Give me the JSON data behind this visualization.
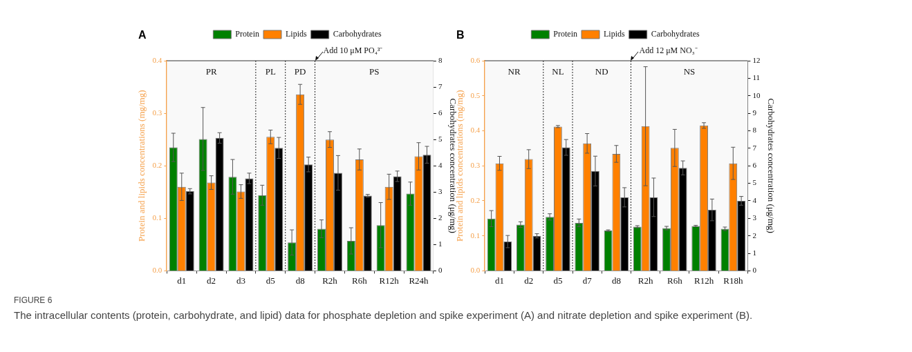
{
  "chart_data": [
    {
      "type": "bar",
      "title": "A",
      "categories": [
        "d1",
        "d2",
        "d3",
        "d5",
        "d8",
        "R2h",
        "R6h",
        "R12h",
        "R24h"
      ],
      "series": [
        {
          "name": "Protein",
          "color": "#008000",
          "values": [
            0.235,
            0.251,
            0.179,
            0.144,
            0.054,
            0.08,
            0.057,
            0.087,
            0.147
          ],
          "errors": [
            0.027,
            0.06,
            0.033,
            0.019,
            0.024,
            0.017,
            0.025,
            0.043,
            0.022
          ]
        },
        {
          "name": "Lipids",
          "color": "#ff8000",
          "values": [
            0.16,
            0.168,
            0.151,
            0.255,
            0.336,
            0.25,
            0.212,
            0.16,
            0.218
          ],
          "errors": [
            0.026,
            0.013,
            0.013,
            0.013,
            0.019,
            0.015,
            0.02,
            0.024,
            0.026
          ]
        },
        {
          "name": "Carbohydrates",
          "color": "#000000",
          "axis": "y2",
          "values": [
            3.03,
            5.06,
            3.52,
            4.68,
            4.05,
            3.73,
            2.86,
            3.6,
            4.42
          ],
          "errors": [
            0.1,
            0.2,
            0.2,
            0.4,
            0.28,
            0.66,
            0.05,
            0.2,
            0.32
          ]
        }
      ],
      "ylabel": "Protein and lipids concentrations (mg/mg)",
      "y2label": "Carbohydrates concentration (μg/mg)",
      "ylim": [
        0,
        0.4
      ],
      "yticks": [
        {
          "value": 0,
          "label": "0.0"
        },
        0.1,
        0.2,
        0.3,
        0.4
      ],
      "y2lim": [
        0,
        8
      ],
      "y2ticks": [
        0,
        1,
        2,
        3,
        4,
        5,
        6,
        7,
        8
      ],
      "bands": [
        {
          "axis": "x",
          "from": "d1",
          "to": "d3",
          "label": "PR",
          "color": "#f9f9f9"
        },
        {
          "axis": "x",
          "from": "d5",
          "to": "d5",
          "label": "PL",
          "color": "#f9f9f9"
        },
        {
          "axis": "x",
          "from": "d8",
          "to": "d8",
          "label": "PD",
          "color": "#f9f9f9"
        },
        {
          "axis": "x",
          "from": "R2h",
          "to": "R24h",
          "label": "PS",
          "color": "#f9f9f9"
        }
      ],
      "annotations": [
        "Add 10 μM PO₄³⁻",
        "FIGURE 6",
        "The intracellular contents (protein, carbohydrate, and lipid) data for phosphate depletion and spike experiment (A) and nitrate depletion and spike experiment (B)."
      ],
      "legend": "top",
      "grid": false
    },
    {
      "type": "bar",
      "title": "B",
      "categories": [
        "d1",
        "d2",
        "d5",
        "d7",
        "d8",
        "R2h",
        "R6h",
        "R12h",
        "R18h"
      ],
      "series": [
        {
          "name": "Protein",
          "color": "#008000",
          "values": [
            0.149,
            0.132,
            0.154,
            0.137,
            0.115,
            0.126,
            0.122,
            0.128,
            0.12
          ],
          "errors": [
            0.023,
            0.008,
            0.009,
            0.011,
            0.002,
            0.003,
            0.005,
            0.002,
            0.005
          ]
        },
        {
          "name": "Lipids",
          "color": "#ff8000",
          "values": [
            0.307,
            0.319,
            0.412,
            0.364,
            0.334,
            0.413,
            0.351,
            0.415,
            0.307
          ],
          "errors": [
            0.02,
            0.027,
            0.003,
            0.028,
            0.024,
            0.17,
            0.053,
            0.008,
            0.046
          ]
        },
        {
          "name": "Carbohydrates",
          "color": "#000000",
          "axis": "y2",
          "values": [
            1.67,
            2.0,
            7.05,
            5.7,
            4.2,
            4.2,
            5.88,
            3.48,
            4.0
          ],
          "errors": [
            0.35,
            0.12,
            0.45,
            0.85,
            0.55,
            1.1,
            0.4,
            0.62,
            0.25
          ]
        }
      ],
      "ylabel": "Protein and lipids concentrations (mg/mg)",
      "y2label": "Carbohydrates concentration (μg/mg)",
      "ylim": [
        0,
        0.6
      ],
      "yticks": [
        {
          "value": 0,
          "label": "0.0"
        },
        0.1,
        0.2,
        0.3,
        0.4,
        0.5,
        0.6
      ],
      "y2lim": [
        0,
        12
      ],
      "y2ticks": [
        0,
        1,
        2,
        3,
        4,
        5,
        6,
        7,
        8,
        9,
        10,
        11,
        12
      ],
      "bands": [
        {
          "axis": "x",
          "from": "d1",
          "to": "d2",
          "label": "NR",
          "color": "#f9f9f9"
        },
        {
          "axis": "x",
          "from": "d5",
          "to": "d5",
          "label": "NL",
          "color": "#f9f9f9"
        },
        {
          "axis": "x",
          "from": "d7",
          "to": "d8",
          "label": "ND",
          "color": "#f9f9f9"
        },
        {
          "axis": "x",
          "from": "R2h",
          "to": "R18h",
          "label": "NS",
          "color": "#f9f9f9"
        }
      ],
      "annotations": [
        "Add 12 μM NO₃⁻"
      ],
      "legend": "top",
      "grid": false
    }
  ]
}
